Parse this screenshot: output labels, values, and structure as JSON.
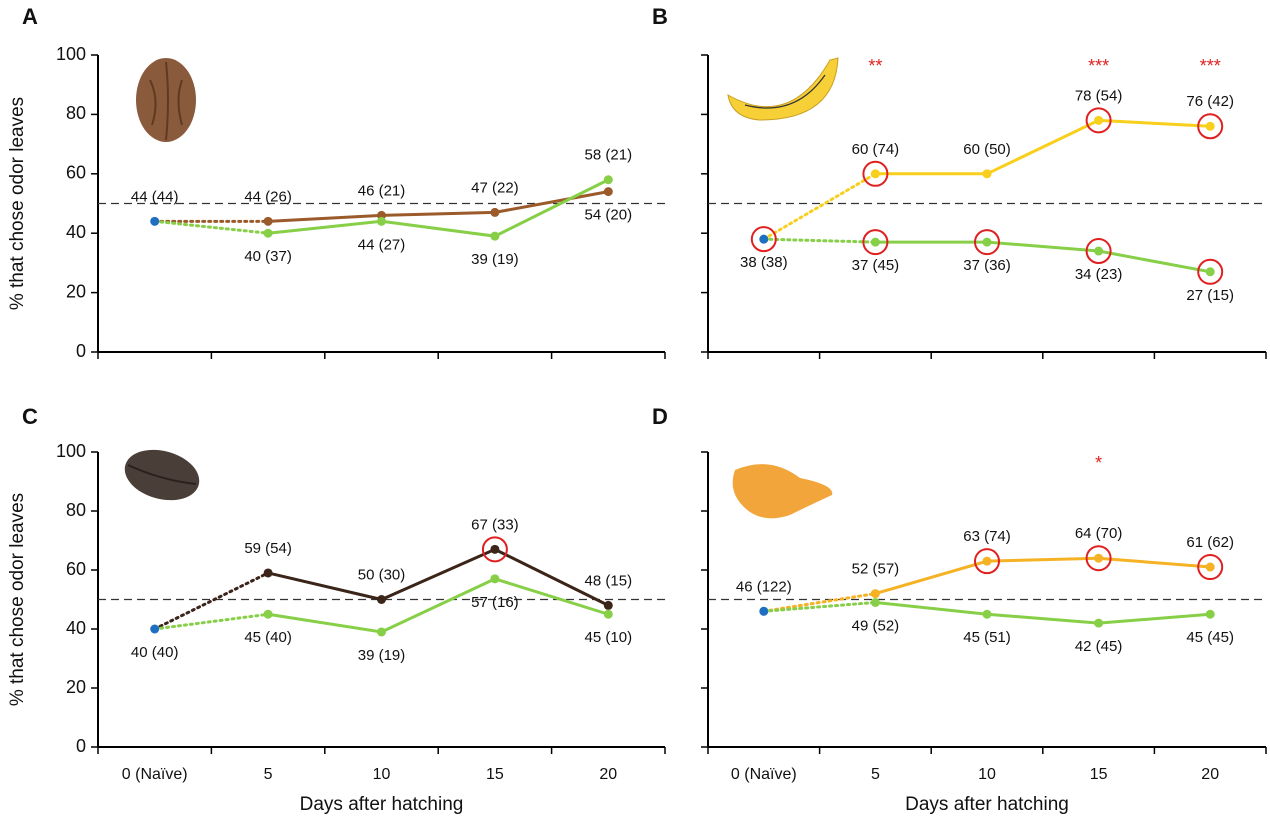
{
  "chart_data": [
    {
      "type": "line",
      "panel": "A",
      "ylabel": "% that chose odor leaves",
      "categories": [
        null,
        null,
        null,
        null,
        null
      ],
      "ylim": [
        0,
        100
      ],
      "yticks": [
        0,
        20,
        40,
        60,
        80,
        100
      ],
      "hline": 50,
      "naive": {
        "value": 44,
        "value_label": "44 (44)",
        "color": "#1f6fc0",
        "circled": false
      },
      "series": [
        {
          "color": "#9b5a2a",
          "values": [
            null,
            44,
            46,
            47,
            54
          ],
          "value_labels": [
            null,
            "44 (26)",
            "46 (21)",
            "47 (22)",
            "54 (20)"
          ],
          "circled": [
            false,
            false,
            false,
            false,
            false
          ]
        },
        {
          "color": "#86cf47",
          "values": [
            null,
            40,
            44,
            39,
            58
          ],
          "value_labels": [
            null,
            "40 (37)",
            "44 (27)",
            "39 (19)",
            "58 (21)"
          ],
          "circled": [
            false,
            false,
            false,
            false,
            false
          ]
        }
      ],
      "stars": [
        null,
        null,
        null,
        null,
        null
      ]
    },
    {
      "type": "line",
      "panel": "B",
      "categories": [
        null,
        null,
        null,
        null,
        null
      ],
      "ylim": [
        0,
        100
      ],
      "yticks": [
        0,
        20,
        40,
        60,
        80,
        100
      ],
      "hline": 50,
      "naive": {
        "value": 38,
        "value_label": "38 (38)",
        "color": "#1f6fc0",
        "circled": true
      },
      "series": [
        {
          "color": "#f7cf1c",
          "values": [
            null,
            60,
            60,
            78,
            76
          ],
          "value_labels": [
            null,
            "60 (74)",
            "60 (50)",
            "78 (54)",
            "76 (42)"
          ],
          "circled": [
            false,
            true,
            false,
            true,
            true
          ]
        },
        {
          "color": "#86cf47",
          "values": [
            null,
            37,
            37,
            34,
            27
          ],
          "value_labels": [
            null,
            "37 (45)",
            "37 (36)",
            "34 (23)",
            "27 (15)"
          ],
          "circled": [
            false,
            true,
            true,
            true,
            true
          ]
        }
      ],
      "stars": [
        null,
        "**",
        null,
        "***",
        "***"
      ]
    },
    {
      "type": "line",
      "panel": "C",
      "ylabel": "% that chose odor leaves",
      "xlabel": "Days after hatching",
      "categories": [
        "0 (Naïve)",
        "5",
        "10",
        "15",
        "20"
      ],
      "ylim": [
        0,
        100
      ],
      "yticks": [
        0,
        20,
        40,
        60,
        80,
        100
      ],
      "hline": 50,
      "naive": {
        "value": 40,
        "value_label": "40 (40)",
        "color": "#1f6fc0",
        "circled": false
      },
      "series": [
        {
          "color": "#3b2418",
          "values": [
            null,
            59,
            50,
            67,
            48
          ],
          "value_labels": [
            null,
            "59 (54)",
            "50 (30)",
            "67 (33)",
            "48 (15)"
          ],
          "circled": [
            false,
            false,
            false,
            true,
            false
          ]
        },
        {
          "color": "#86cf47",
          "values": [
            null,
            45,
            39,
            57,
            45
          ],
          "value_labels": [
            null,
            "45 (40)",
            "39 (19)",
            "57 (16)",
            "45 (10)"
          ],
          "circled": [
            false,
            false,
            false,
            false,
            false
          ]
        }
      ],
      "stars": [
        null,
        null,
        null,
        null,
        null
      ]
    },
    {
      "type": "line",
      "panel": "D",
      "xlabel": "Days after hatching",
      "categories": [
        "0 (Naïve)",
        "5",
        "10",
        "15",
        "20"
      ],
      "ylim": [
        0,
        100
      ],
      "yticks": [
        0,
        20,
        40,
        60,
        80,
        100
      ],
      "hline": 50,
      "naive": {
        "value": 46,
        "value_label": "46 (122)",
        "color": "#1f6fc0",
        "circled": false
      },
      "series": [
        {
          "color": "#f5b225",
          "values": [
            null,
            52,
            63,
            64,
            61
          ],
          "value_labels": [
            null,
            "52 (57)",
            "63 (74)",
            "64 (70)",
            "61 (62)"
          ],
          "circled": [
            false,
            false,
            true,
            true,
            true
          ]
        },
        {
          "color": "#86cf47",
          "values": [
            null,
            49,
            45,
            42,
            45
          ],
          "value_labels": [
            null,
            "49 (52)",
            "45 (51)",
            "42 (45)",
            "45 (45)"
          ],
          "circled": [
            false,
            false,
            false,
            false,
            false
          ]
        }
      ],
      "stars": [
        null,
        null,
        null,
        "*",
        null
      ]
    }
  ]
}
